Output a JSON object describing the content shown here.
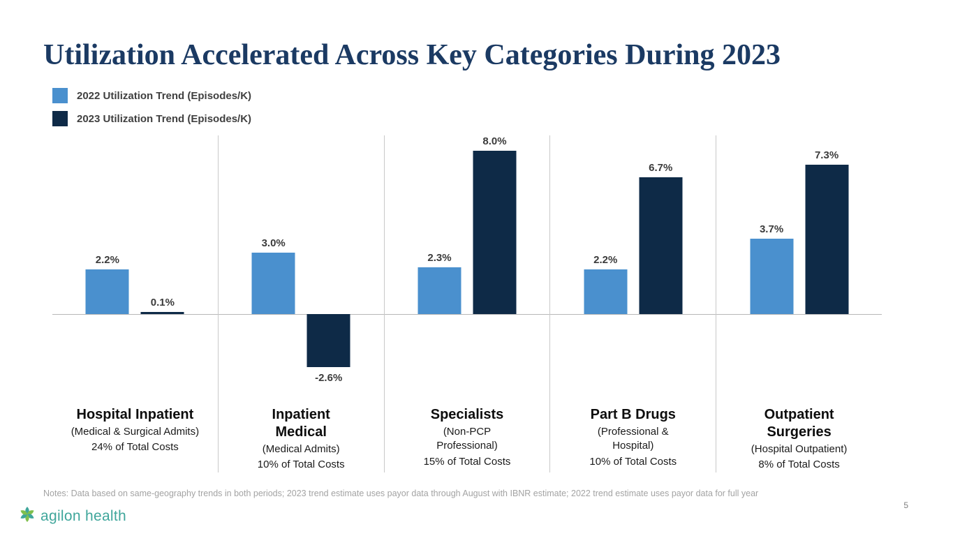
{
  "slide": {
    "title": "Utilization Accelerated Across Key Categories During 2023",
    "notes": "Notes: Data based on same-geography trends in both periods; 2023 trend estimate uses payor data through August with IBNR estimate; 2022 trend estimate uses payor data for full year",
    "page_number": "5",
    "logo_text": "agilon health",
    "logo_color": "#3fa69b"
  },
  "legend": {
    "items": [
      {
        "label": "2022 Utilization Trend (Episodes/K)",
        "color": "#4a90ce"
      },
      {
        "label": "2023 Utilization Trend (Episodes/K)",
        "color": "#0e2a47"
      }
    ]
  },
  "chart_data": {
    "type": "bar",
    "title": "Utilization Accelerated Across Key Categories During 2023",
    "value_format": "percent",
    "grid": false,
    "legend_position": "top-left",
    "ylim": [
      -3.5,
      8.8
    ],
    "categories": [
      {
        "name": "Hospital Inpatient",
        "subtitle": "(Medical & Surgical Admits)",
        "cost_share": "24% of Total Costs"
      },
      {
        "name": "Inpatient\nMedical",
        "subtitle": "(Medical Admits)",
        "cost_share": "10% of Total Costs"
      },
      {
        "name": "Specialists",
        "subtitle": "(Non-PCP\nProfessional)",
        "cost_share": "15% of Total Costs"
      },
      {
        "name": "Part B Drugs",
        "subtitle": "(Professional &\nHospital)",
        "cost_share": "10% of Total Costs"
      },
      {
        "name": "Outpatient\nSurgeries",
        "subtitle": "(Hospital Outpatient)",
        "cost_share": "8% of Total Costs"
      }
    ],
    "series": [
      {
        "name": "2022 Utilization Trend (Episodes/K)",
        "color": "#4a90ce",
        "values": [
          2.2,
          3.0,
          2.3,
          2.2,
          3.7
        ],
        "labels": [
          "2.2%",
          "3.0%",
          "2.3%",
          "2.2%",
          "3.7%"
        ]
      },
      {
        "name": "2023 Utilization Trend (Episodes/K)",
        "color": "#0e2a47",
        "values": [
          0.1,
          -2.6,
          8.0,
          6.7,
          7.3
        ],
        "labels": [
          "0.1%",
          "-2.6%",
          "8.0%",
          "6.7%",
          "7.3%"
        ]
      }
    ]
  }
}
